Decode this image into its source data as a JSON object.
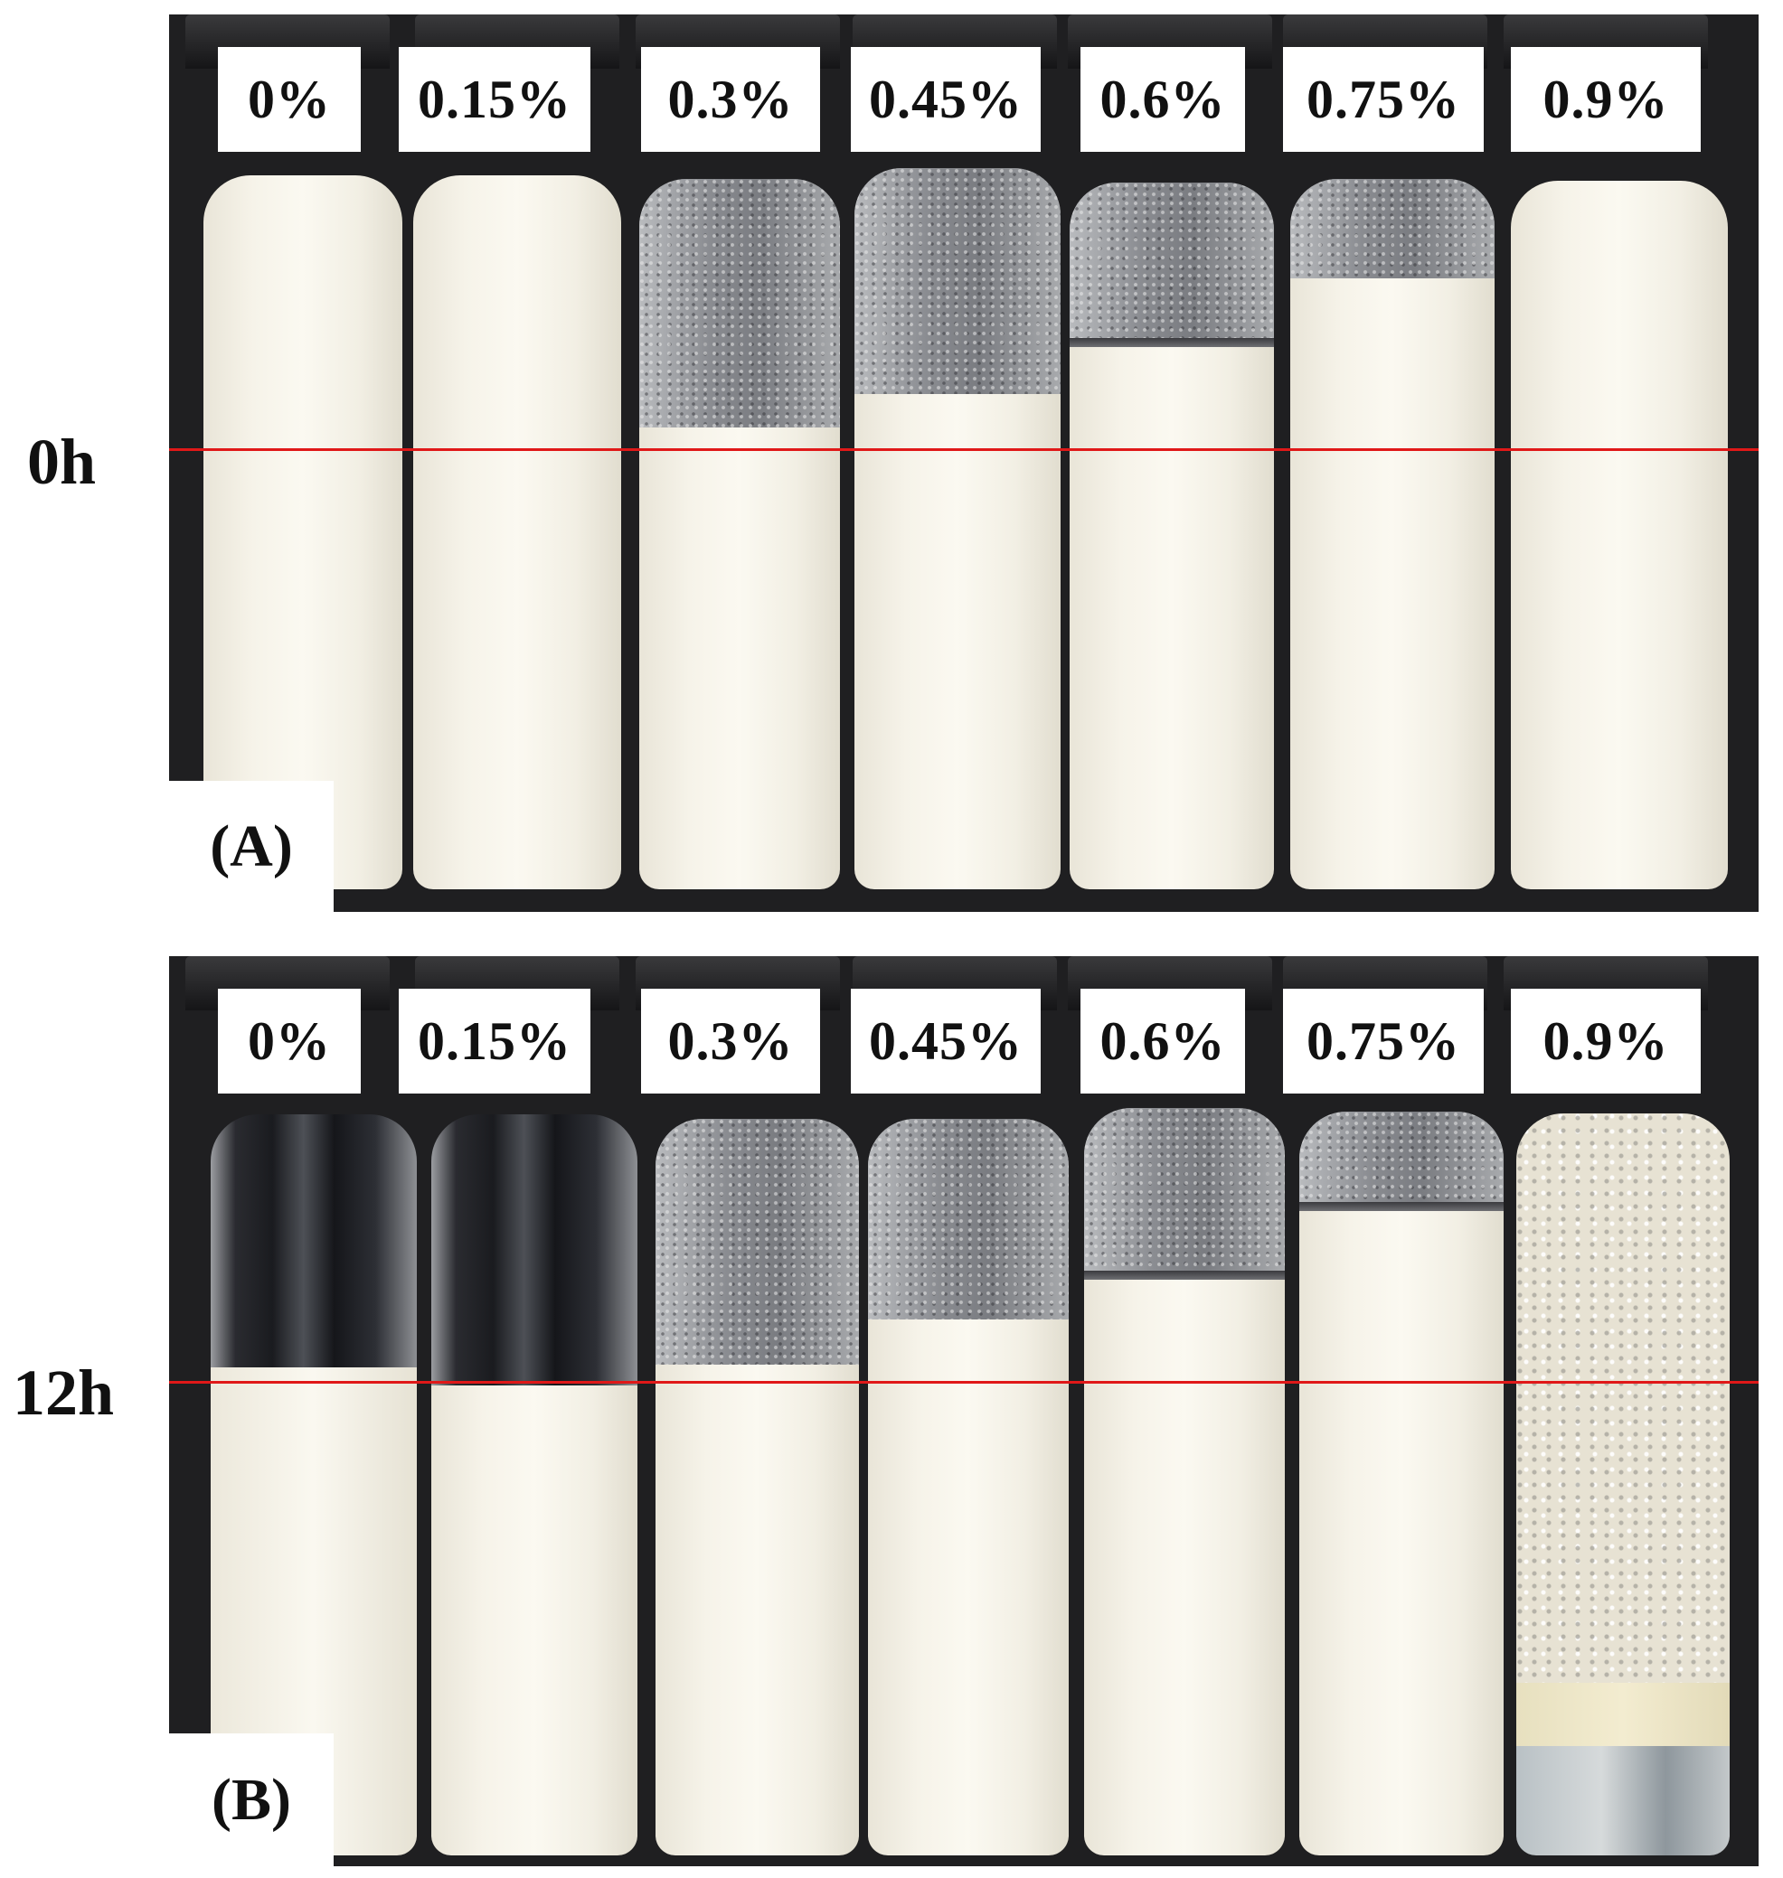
{
  "panel_a": {
    "time": "0h",
    "tag": "(A)",
    "labels": [
      "0%",
      "0.15%",
      "0.3%",
      "0.45%",
      "0.6%",
      "0.75%",
      "0.9%"
    ]
  },
  "panel_b": {
    "time": "12h",
    "tag": "(B)",
    "labels": [
      "0%",
      "0.15%",
      "0.3%",
      "0.45%",
      "0.6%",
      "0.75%",
      "0.9%"
    ]
  },
  "colors": {
    "reference_line": "#e01818",
    "background": "#1f1f21",
    "emulsion": "#f6f3e9"
  }
}
